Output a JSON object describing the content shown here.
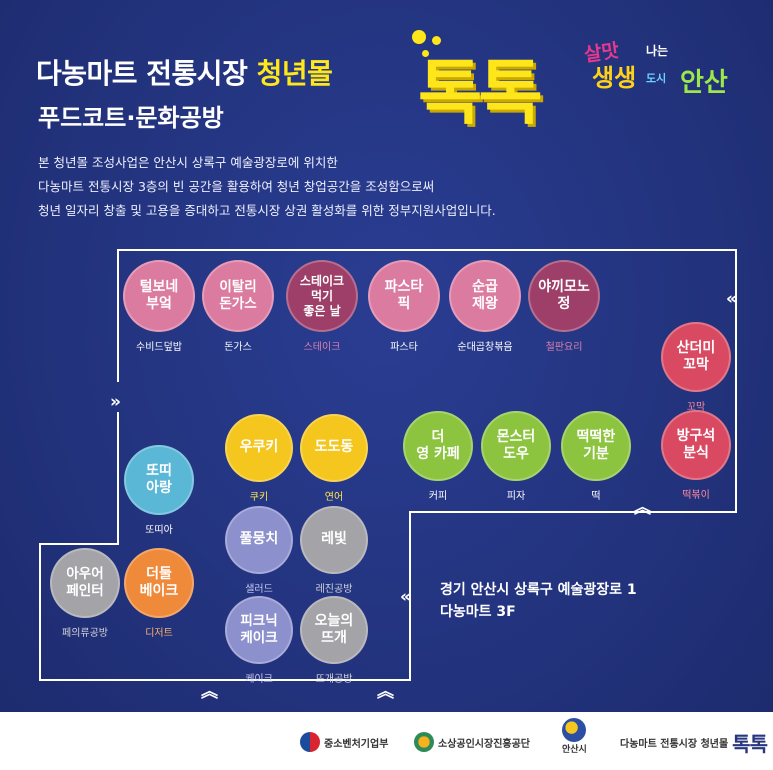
{
  "header": {
    "title_main": "다농마트 전통시장",
    "title_highlight": "청년몰",
    "subtitle": "푸드코트·문화공방",
    "brand": "톡톡",
    "description": [
      "본 청년몰 조성사업은 안산시 상록구 예술광장로에 위치한",
      "다농마트 전통시장 3층의 빈 공간을 활용하여 청년 창업공간을 조성함으로써",
      "청년 일자리 창출 및 고용을 증대하고 전통시장 상권 활성화를 위한 정부지원사업입니다."
    ]
  },
  "city_logo": {
    "line1": "살맛",
    "line2": "나는",
    "line3": "생생",
    "line4": "도시",
    "line5": "안산"
  },
  "shops": [
    {
      "name": "털보네\n부엌",
      "category": "수비드덮밥",
      "color": "#dc7ba0",
      "text_color": "#ffffff",
      "cap_color": "#ffffff"
    },
    {
      "name": "이탈리\n돈가스",
      "category": "돈가스",
      "color": "#dc7ba0",
      "text_color": "#ffffff",
      "cap_color": "#ffffff"
    },
    {
      "name": "스테이크\n먹기\n좋은 날",
      "category": "스테이크",
      "color": "#9e3f6a",
      "text_color": "#ffffff",
      "cap_color": "#d982ad"
    },
    {
      "name": "파스타\n픽",
      "category": "파스타",
      "color": "#dc7ba0",
      "text_color": "#ffffff",
      "cap_color": "#ffffff"
    },
    {
      "name": "순곱\n제왕",
      "category": "순대곱창볶음",
      "color": "#dc7ba0",
      "text_color": "#ffffff",
      "cap_color": "#ffffff"
    },
    {
      "name": "야끼모노\n정",
      "category": "철판요리",
      "color": "#9e3f6a",
      "text_color": "#ffffff",
      "cap_color": "#d982ad"
    },
    {
      "name": "산더미\n꼬막",
      "category": "꼬막",
      "color": "#d94a62",
      "text_color": "#ffffff",
      "cap_color": "#ff8aa0"
    },
    {
      "name": "방구석\n분식",
      "category": "떡볶이",
      "color": "#d94a62",
      "text_color": "#ffffff",
      "cap_color": "#ff8aa0"
    },
    {
      "name": "우쿠키",
      "category": "쿠키",
      "color": "#f4c61e",
      "text_color": "#ffffff",
      "cap_color": "#ffe74a"
    },
    {
      "name": "도도동",
      "category": "연어",
      "color": "#f4c61e",
      "text_color": "#ffffff",
      "cap_color": "#ffe74a"
    },
    {
      "name": "더\n영 카페",
      "category": "커피",
      "color": "#8cc43f",
      "text_color": "#ffffff",
      "cap_color": "#ffffff"
    },
    {
      "name": "몬스터\n도우",
      "category": "피자",
      "color": "#8cc43f",
      "text_color": "#ffffff",
      "cap_color": "#ffffff"
    },
    {
      "name": "떡떡한\n기분",
      "category": "떡",
      "color": "#8cc43f",
      "text_color": "#ffffff",
      "cap_color": "#ffffff"
    },
    {
      "name": "또띠\n아랑",
      "category": "또띠아",
      "color": "#5ab7d6",
      "text_color": "#ffffff",
      "cap_color": "#ffffff"
    },
    {
      "name": "풀뭉치",
      "category": "샐러드",
      "color": "#8c90cc",
      "text_color": "#ffffff",
      "cap_color": "#c8cbf2"
    },
    {
      "name": "레빛",
      "category": "레진공방",
      "color": "#a3a3a8",
      "text_color": "#ffffff",
      "cap_color": "#d4d4d8"
    },
    {
      "name": "아우어\n페인터",
      "category": "페의류공방",
      "color": "#a3a3a8",
      "text_color": "#ffffff",
      "cap_color": "#d4d4d8"
    },
    {
      "name": "더둘\n베이크",
      "category": "디저트",
      "color": "#ef8a3a",
      "text_color": "#ffffff",
      "cap_color": "#ffb56b"
    },
    {
      "name": "피크닉\n케이크",
      "category": "케이크",
      "color": "#8c90cc",
      "text_color": "#ffffff",
      "cap_color": "#c8cbf2"
    },
    {
      "name": "오늘의\n뜨개",
      "category": "뜨개공방",
      "color": "#a3a3a8",
      "text_color": "#ffffff",
      "cap_color": "#d4d4d8"
    }
  ],
  "chevrons": {
    "right": "»",
    "left": "«",
    "up": "︽"
  },
  "address": {
    "line1": "경기 안산시 상록구 예술광장로 1",
    "line2": "다농마트 3F"
  },
  "footer": {
    "logo1": "중소벤처기업부",
    "logo2": "소상공인시장진흥공단",
    "logo3": "안산시",
    "logo4_text": "다농마트 전통시장 청년몰",
    "logo4_brand": "톡톡"
  },
  "colors": {
    "background": "#23337e",
    "highlight": "#ffe81a",
    "path_line": "#ffffff"
  }
}
